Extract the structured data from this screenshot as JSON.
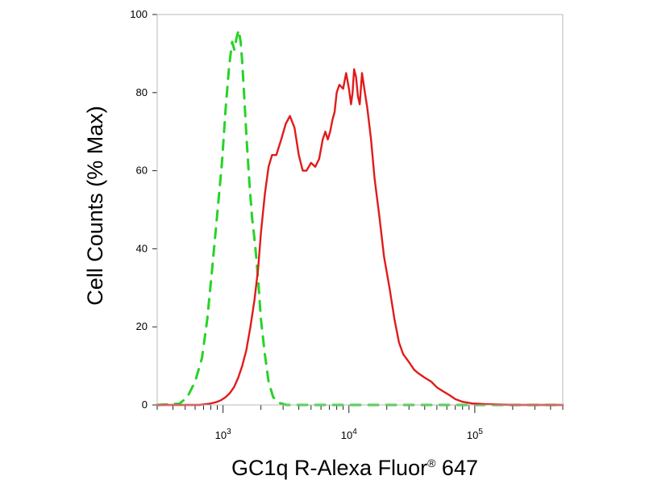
{
  "chart_data": {
    "type": "line",
    "title": "",
    "xlabel": "GC1q R-Alexa Fluor",
    "xlabel_mark": "®",
    "xlabel_suffix": " 647",
    "ylabel": "Cell Counts (% Max)",
    "xscale": "log",
    "xlim": [
      300,
      500000
    ],
    "ylim": [
      0,
      100
    ],
    "grid": false,
    "y_ticks": [
      0,
      20,
      40,
      60,
      80,
      100
    ],
    "y_tick_labels": [
      "0",
      "20",
      "40",
      "60",
      "80",
      "100"
    ],
    "x_ticks": [
      1000,
      10000,
      100000
    ],
    "x_tick_labels": [
      {
        "base": "10",
        "exp": "3"
      },
      {
        "base": "10",
        "exp": "4"
      },
      {
        "base": "10",
        "exp": "5"
      }
    ],
    "series": [
      {
        "color": "#27d327",
        "style": "dashed",
        "x": [
          300,
          450,
          520,
          600,
          680,
          750,
          820,
          900,
          980,
          1050,
          1120,
          1180,
          1230,
          1280,
          1330,
          1380,
          1420,
          1480,
          1540,
          1620,
          1700,
          1800,
          1900,
          2000,
          2150,
          2300,
          2500,
          2800,
          3200,
          4000,
          10000,
          100000,
          500000
        ],
        "y": [
          0,
          0.3,
          2,
          6,
          12,
          22,
          35,
          49,
          62,
          76,
          87,
          93,
          91,
          94,
          96,
          93,
          88,
          78,
          68,
          57,
          48,
          41,
          32,
          22,
          13,
          6,
          2,
          0.5,
          0,
          0,
          0,
          0,
          0
        ]
      },
      {
        "color": "#e11b1b",
        "style": "solid",
        "x": [
          300,
          650,
          780,
          880,
          960,
          1050,
          1130,
          1220,
          1320,
          1420,
          1530,
          1650,
          1780,
          1900,
          2000,
          2150,
          2300,
          2450,
          2650,
          2900,
          3150,
          3400,
          3700,
          4000,
          4300,
          4600,
          5000,
          5400,
          5800,
          6200,
          6500,
          6800,
          7100,
          7400,
          7700,
          8000,
          8400,
          9000,
          9500,
          10000,
          10400,
          10700,
          11000,
          11400,
          11800,
          12200,
          12700,
          13400,
          14000,
          15000,
          16000,
          17500,
          19000,
          21000,
          23000,
          25000,
          27000,
          30000,
          33000,
          36000,
          40000,
          45000,
          50000,
          56000,
          63000,
          70000,
          80000,
          95000,
          120000,
          150000,
          200000,
          500000
        ],
        "y": [
          0,
          0,
          0.3,
          0.7,
          1.2,
          2,
          3,
          4.5,
          7,
          10,
          14,
          20,
          27,
          35,
          44,
          54,
          61,
          64,
          64,
          68,
          72,
          74,
          71,
          64,
          60,
          60,
          62,
          61,
          63,
          68,
          70,
          68,
          70,
          73,
          75,
          80,
          82,
          81,
          85,
          81,
          77,
          80,
          86,
          84,
          79,
          77,
          85,
          80,
          76,
          68,
          58,
          48,
          38,
          30,
          22,
          16,
          13,
          11,
          9,
          8,
          7,
          6,
          4.5,
          3.5,
          2.5,
          1.5,
          0.8,
          0.4,
          0.2,
          0.1,
          0,
          0
        ]
      }
    ]
  }
}
